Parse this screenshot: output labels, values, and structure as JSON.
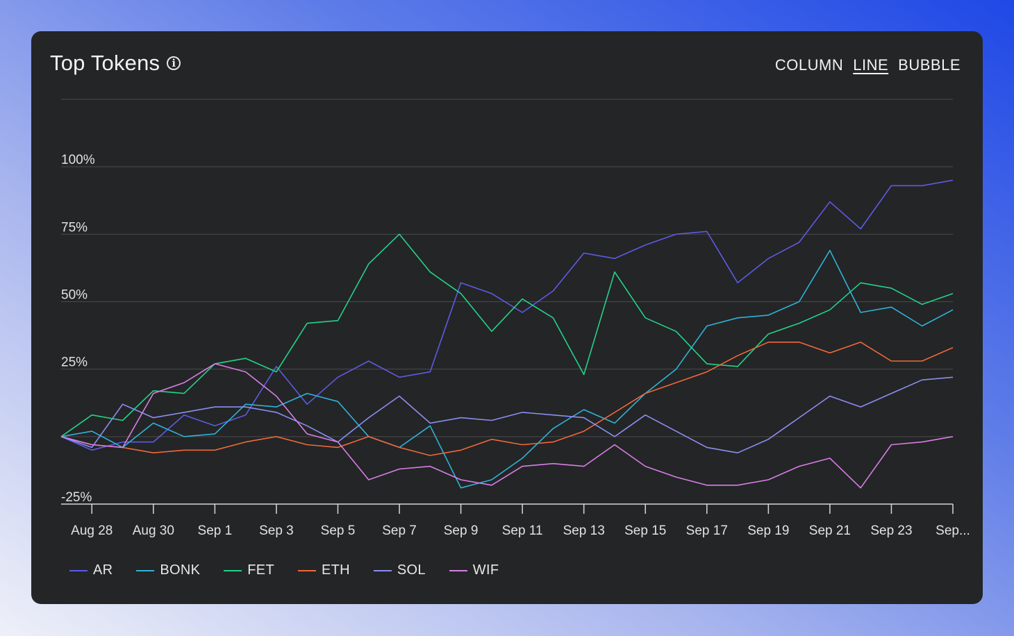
{
  "header": {
    "title": "Top Tokens",
    "info_icon": "info-icon"
  },
  "tabs": [
    {
      "label": "COLUMN",
      "active": false
    },
    {
      "label": "LINE",
      "active": true
    },
    {
      "label": "BUBBLE",
      "active": false
    }
  ],
  "chart_data": {
    "type": "line",
    "title": "Top Tokens",
    "xlabel": "",
    "ylabel": "",
    "ylim": [
      -25,
      125
    ],
    "yticks": [
      -25,
      0,
      25,
      50,
      75,
      100,
      125
    ],
    "ytick_labels": [
      "-25%",
      "",
      "25%",
      "50%",
      "75%",
      "100%",
      ""
    ],
    "grid": true,
    "legend_position": "bottom-left",
    "x": [
      "Aug 27",
      "Aug 28",
      "Aug 29",
      "Aug 30",
      "Aug 31",
      "Sep 1",
      "Sep 2",
      "Sep 3",
      "Sep 4",
      "Sep 5",
      "Sep 6",
      "Sep 7",
      "Sep 8",
      "Sep 9",
      "Sep 10",
      "Sep 11",
      "Sep 12",
      "Sep 13",
      "Sep 14",
      "Sep 15",
      "Sep 16",
      "Sep 17",
      "Sep 18",
      "Sep 19",
      "Sep 20",
      "Sep 21",
      "Sep 22",
      "Sep 23",
      "Sep 24",
      "Sep 25"
    ],
    "xtick_labels": [
      "Aug 28",
      "Aug 30",
      "Sep 1",
      "Sep 3",
      "Sep 5",
      "Sep 7",
      "Sep 9",
      "Sep 11",
      "Sep 13",
      "Sep 15",
      "Sep 17",
      "Sep 19",
      "Sep 21",
      "Sep 23",
      "Sep..."
    ],
    "xtick_indices": [
      1,
      3,
      5,
      7,
      9,
      11,
      13,
      15,
      17,
      19,
      21,
      23,
      25,
      27,
      29
    ],
    "series": [
      {
        "name": "AR",
        "color": "#5b5ce6",
        "values": [
          0,
          -5,
          -2,
          -2,
          8,
          4,
          8,
          26,
          12,
          22,
          28,
          22,
          24,
          57,
          53,
          46,
          54,
          68,
          66,
          71,
          75,
          76,
          57,
          66,
          72,
          87,
          77,
          93,
          93,
          95
        ]
      },
      {
        "name": "BONK",
        "color": "#2fb3d9",
        "values": [
          0,
          2,
          -4,
          5,
          0,
          1,
          12,
          11,
          16,
          13,
          0,
          -4,
          4,
          -19,
          -16,
          -8,
          3,
          10,
          5,
          16,
          25,
          41,
          44,
          45,
          50,
          69,
          46,
          48,
          41,
          47
        ]
      },
      {
        "name": "FET",
        "color": "#22d48a",
        "values": [
          0,
          8,
          6,
          17,
          16,
          27,
          29,
          24,
          42,
          43,
          64,
          75,
          61,
          53,
          39,
          51,
          44,
          23,
          61,
          44,
          39,
          27,
          26,
          38,
          42,
          47,
          57,
          55,
          49,
          53
        ]
      },
      {
        "name": "ETH",
        "color": "#f0683c",
        "values": [
          0,
          -3,
          -4,
          -6,
          -5,
          -5,
          -2,
          0,
          -3,
          -4,
          0,
          -4,
          -7,
          -5,
          -1,
          -3,
          -2,
          2,
          9,
          16,
          20,
          24,
          30,
          35,
          35,
          31,
          35,
          28,
          28,
          33
        ]
      },
      {
        "name": "SOL",
        "color": "#8a8ff2",
        "values": [
          0,
          -4,
          12,
          7,
          9,
          11,
          11,
          9,
          4,
          -2,
          7,
          15,
          5,
          7,
          6,
          9,
          8,
          7,
          0,
          8,
          2,
          -4,
          -6,
          -1,
          7,
          15,
          11,
          16,
          21,
          22
        ]
      },
      {
        "name": "WIF",
        "color": "#d97ee8",
        "values": [
          0,
          -3,
          -4,
          16,
          20,
          27,
          24,
          15,
          1,
          -2,
          -16,
          -12,
          -11,
          -16,
          -18,
          -11,
          -10,
          -11,
          -3,
          -11,
          -15,
          -18,
          -18,
          -16,
          -11,
          -8,
          -19,
          -3,
          -2,
          0
        ]
      }
    ]
  }
}
